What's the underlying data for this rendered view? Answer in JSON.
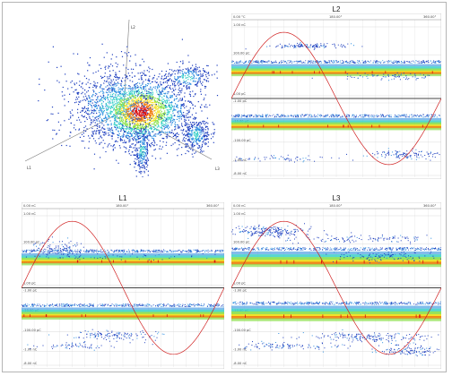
{
  "panels": {
    "scatter3d": {
      "axes": [
        {
          "name": "L2"
        },
        {
          "name": "L1"
        },
        {
          "name": "L3"
        }
      ],
      "colorscale": [
        "#1f3fbf",
        "#2e8fe0",
        "#39d0c8",
        "#8be04a",
        "#f0e020",
        "#f07d10",
        "#d91010"
      ]
    },
    "L2": {
      "title": "L2",
      "x_ticks": [
        "0.00 °C",
        "180.00°",
        "360.00°"
      ],
      "upper_labels": [
        "1.00 nC",
        "100.00 pC",
        "10.00 pC"
      ],
      "lower_labels": [
        "1.00 pC",
        "-1.00 pC",
        "-10.00 pC",
        "-100.00 pC",
        "-1.00 nC",
        "-8.00 nC"
      ]
    },
    "L1": {
      "title": "L1",
      "x_ticks": [
        "0.00 nC",
        "180.00°",
        "360.00°"
      ],
      "upper_labels": [
        "1.00 nC",
        "100.00 pC",
        "10.00 pC"
      ],
      "lower_labels": [
        "1.00 pC",
        "-1.00 pC",
        "-10.00 pC",
        "-100.00 pC",
        "-1.00 nC",
        "-8.00 nC"
      ]
    },
    "L3": {
      "title": "L3",
      "x_ticks": [
        "0.00 nC",
        "180.00°",
        "360.00°"
      ],
      "upper_labels": [
        "1.00 nC",
        "100.00 pC",
        "10.00 pC"
      ],
      "lower_labels": [
        "1.00 pC",
        "-1.00 pC",
        "-10.00 pC",
        "-100.00 pC",
        "-1.00 nC",
        "-8.00 nC"
      ]
    }
  },
  "chart_data": [
    {
      "type": "scatter",
      "axis_labels": [
        "L2",
        "L1",
        "L3"
      ],
      "clusters": [
        {
          "center": [
            0.0,
            0.0,
            0.0
          ],
          "relative_density": 1.0
        },
        {
          "center": [
            0.2,
            0.3,
            -0.2
          ],
          "relative_density": 0.3
        },
        {
          "center": [
            0.3,
            -0.5,
            0.4
          ],
          "relative_density": 0.25
        },
        {
          "center": [
            -0.1,
            -0.6,
            0.0
          ],
          "relative_density": 0.2
        }
      ]
    },
    {
      "type": "scatter",
      "title": "L2",
      "x_range_deg": [
        0,
        360
      ],
      "y_scale": "symlog",
      "sine_reference": {
        "phase_deg": [
          0,
          360
        ]
      },
      "bands": [
        {
          "level": "10.00 pC",
          "polarity": "positive",
          "intensity": 1.0
        },
        {
          "level": "-10.00 pC",
          "polarity": "negative",
          "intensity": 1.0
        }
      ]
    },
    {
      "type": "scatter",
      "title": "L1",
      "x_range_deg": [
        0,
        360
      ],
      "y_scale": "symlog",
      "sine_reference": {
        "phase_deg": [
          0,
          360
        ]
      },
      "bands": [
        {
          "level": "10.00 pC",
          "polarity": "positive",
          "intensity": 1.0
        },
        {
          "level": "-10.00 pC",
          "polarity": "negative",
          "intensity": 1.0
        }
      ]
    },
    {
      "type": "scatter",
      "title": "L3",
      "x_range_deg": [
        0,
        360
      ],
      "y_scale": "symlog",
      "sine_reference": {
        "phase_deg": [
          0,
          360
        ]
      },
      "bands": [
        {
          "level": "10.00 pC",
          "polarity": "positive",
          "intensity": 1.0
        },
        {
          "level": "-10.00 pC",
          "polarity": "negative",
          "intensity": 1.0
        }
      ]
    }
  ]
}
